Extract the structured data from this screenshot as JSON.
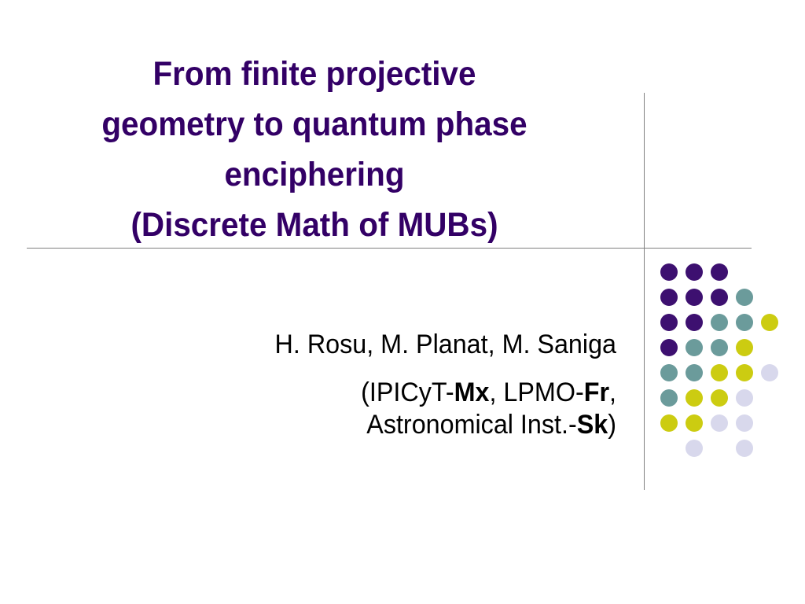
{
  "slide": {
    "title_lines": [
      "From finite projective",
      "geometry to quantum phase",
      "enciphering",
      "(Discrete Math of MUBs)"
    ],
    "authors": "H. Rosu, M. Planat, M. Saniga",
    "affiliation": {
      "open": "(IPICyT-",
      "mx": "Mx",
      "sep1": ", LPMO-",
      "fr": "Fr",
      "sep2": ",",
      "inst": "Astronomical Inst.-",
      "sk": "Sk",
      "close": ")"
    }
  },
  "decoration": {
    "colors": {
      "purple": "#3d1070",
      "teal": "#6b9b9b",
      "yellow": "#cccc11",
      "lavender": "#d8d8ec",
      "rule": "#808080",
      "title": "#330066"
    },
    "dot_rows": [
      [
        "purple",
        "purple",
        "purple",
        null,
        null
      ],
      [
        "purple",
        "purple",
        "purple",
        "teal",
        null
      ],
      [
        "purple",
        "purple",
        "teal",
        "teal",
        "yellow"
      ],
      [
        "purple",
        "teal",
        "teal",
        "yellow",
        null
      ],
      [
        "teal",
        "teal",
        "yellow",
        "yellow",
        "lavender"
      ],
      [
        "teal",
        "yellow",
        "yellow",
        "lavender",
        null
      ],
      [
        "yellow",
        "yellow",
        "lavender",
        "lavender",
        null
      ],
      [
        null,
        "lavender",
        null,
        "lavender",
        null
      ]
    ]
  }
}
